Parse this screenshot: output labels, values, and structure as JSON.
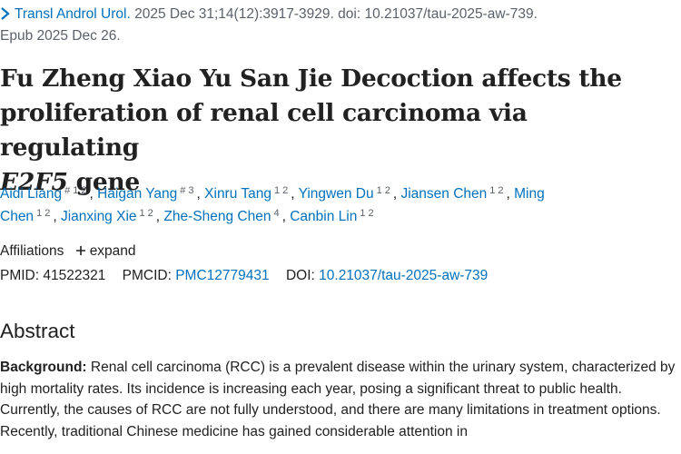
{
  "citation": {
    "journal": "Transl Androl Urol.",
    "details": "2025 Dec 31;14(12):3917-3929. doi: 10.21037/tau-2025-aw-739.",
    "epub": "Epub 2025 Dec 26."
  },
  "title": {
    "main": "Fu Zheng Xiao Yu San Jie Decoction affects the proliferation of renal cell carcinoma via regulating",
    "gene": "E2F5",
    "tail": "gene"
  },
  "authors": [
    {
      "name": "Aidi Liang",
      "sup": [
        "#",
        "1",
        "2"
      ],
      "sep": ","
    },
    {
      "name": "Haigan Yang",
      "sup": [
        "#",
        "3"
      ],
      "sep": ","
    },
    {
      "name": "Xinru Tang",
      "sup": [
        "1",
        "2"
      ],
      "sep": ","
    },
    {
      "name": "Yingwen Du",
      "sup": [
        "1",
        "2"
      ],
      "sep": ","
    },
    {
      "name": "Jiansen Chen",
      "sup": [
        "1",
        "2"
      ],
      "sep": ","
    },
    {
      "name": "Ming Chen",
      "sup": [
        "1",
        "2"
      ],
      "sep": ","
    },
    {
      "name": "Jianxing Xie",
      "sup": [
        "1",
        "2"
      ],
      "sep": ","
    },
    {
      "name": "Zhe-Sheng Chen",
      "sup": [
        "4"
      ],
      "sep": ","
    },
    {
      "name": "Canbin Lin",
      "sup": [
        "1",
        "2"
      ]
    }
  ],
  "affiliations": {
    "label": "Affiliations",
    "expand": "expand"
  },
  "ids": {
    "pmid_label": "PMID:",
    "pmid": "41522321",
    "pmcid_label": "PMCID:",
    "pmcid": "PMC12779431",
    "doi_label": "DOI:",
    "doi": "10.21037/tau-2025-aw-739"
  },
  "abstract": {
    "heading": "Abstract",
    "background_label": "Background:",
    "background_text": "Renal cell carcinoma (RCC) is a prevalent disease within the urinary system, characterized by high mortality rates. Its incidence is increasing each year, posing a significant threat to public health. Currently, the causes of RCC are not fully understood, and there are many limitations in treatment options. Recently, traditional Chinese medicine has gained considerable attention in"
  }
}
